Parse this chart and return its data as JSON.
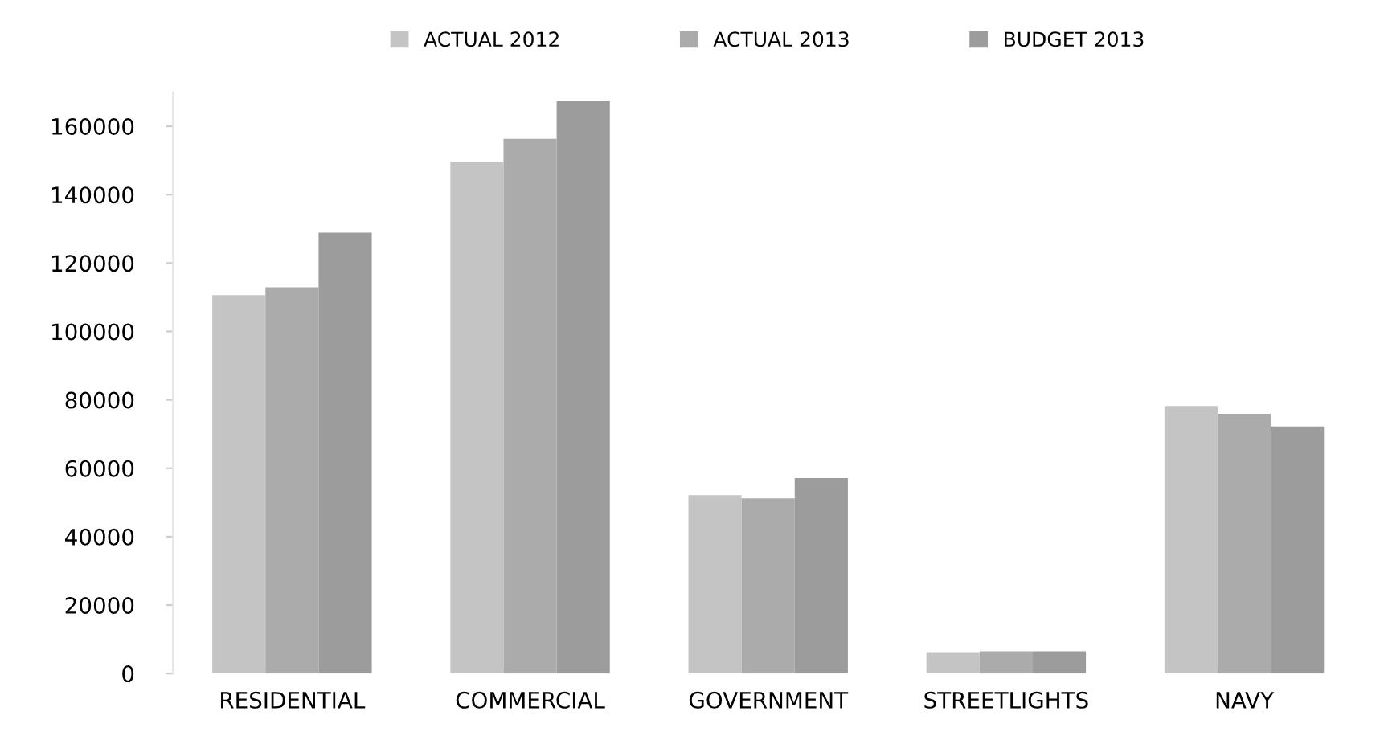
{
  "chart_data": {
    "type": "bar",
    "categories": [
      "RESIDENTIAL",
      "COMMERCIAL",
      "GOVERNMENT",
      "STREETLIGHTS",
      "NAVY"
    ],
    "series": [
      {
        "name": "ACTUAL 2012",
        "color": "#c4c4c4",
        "values": [
          110600,
          149500,
          52100,
          6000,
          78200
        ]
      },
      {
        "name": "ACTUAL 2013",
        "color": "#ababab",
        "values": [
          112900,
          156300,
          51200,
          6500,
          75900
        ]
      },
      {
        "name": "BUDGET 2013",
        "color": "#9c9c9c",
        "values": [
          128900,
          167300,
          57100,
          6500,
          72200
        ]
      }
    ],
    "ylim": [
      0,
      170000
    ],
    "yticks": [
      0,
      20000,
      40000,
      60000,
      80000,
      100000,
      120000,
      140000,
      160000
    ],
    "grid": false,
    "legend": "top"
  }
}
